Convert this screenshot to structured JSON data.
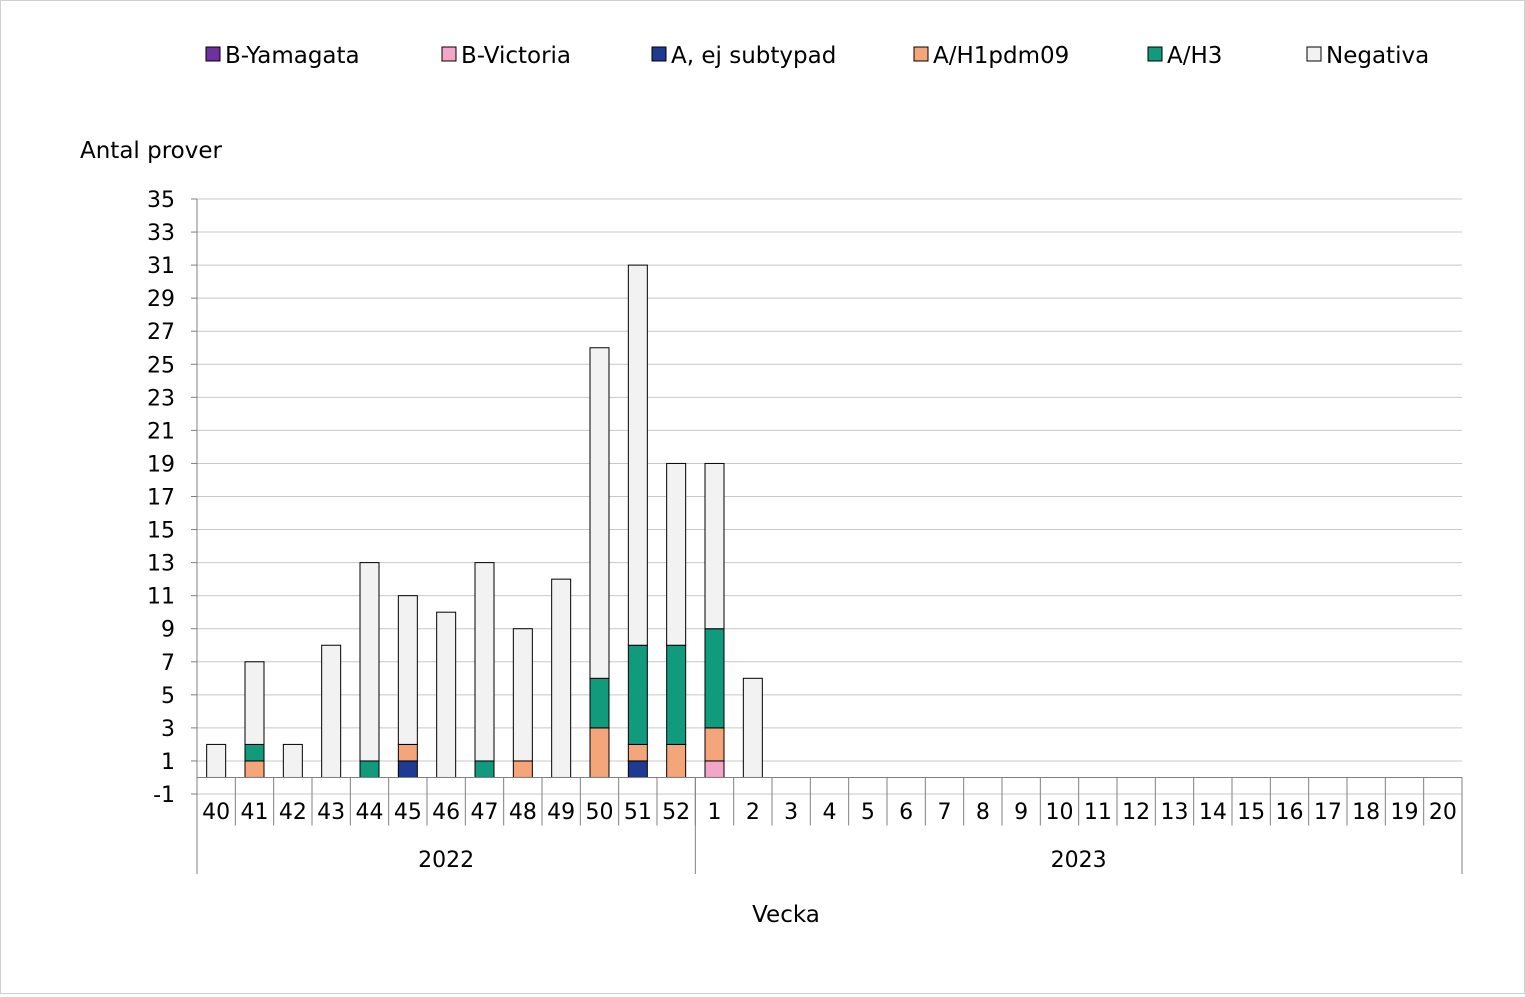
{
  "chart_data": {
    "type": "bar",
    "stacked": true,
    "ylabel": "Antal prover",
    "xlabel": "Vecka",
    "ylim": [
      -1,
      35
    ],
    "yticks": [
      -1,
      1,
      3,
      5,
      7,
      9,
      11,
      13,
      15,
      17,
      19,
      21,
      23,
      25,
      27,
      29,
      31,
      33,
      35
    ],
    "grid": true,
    "legend_position": "top",
    "categories": [
      "40",
      "41",
      "42",
      "43",
      "44",
      "45",
      "46",
      "47",
      "48",
      "49",
      "50",
      "51",
      "52",
      "1",
      "2",
      "3",
      "4",
      "5",
      "6",
      "7",
      "8",
      "9",
      "10",
      "11",
      "12",
      "13",
      "14",
      "15",
      "16",
      "17",
      "18",
      "19",
      "20"
    ],
    "year_groups": [
      {
        "label": "2022",
        "count": 13
      },
      {
        "label": "2023",
        "count": 20
      }
    ],
    "series": [
      {
        "name": "B-Yamagata",
        "color": "#7030a0",
        "values": [
          0,
          0,
          0,
          0,
          0,
          0,
          0,
          0,
          0,
          0,
          0,
          0,
          0,
          0,
          0,
          0,
          0,
          0,
          0,
          0,
          0,
          0,
          0,
          0,
          0,
          0,
          0,
          0,
          0,
          0,
          0,
          0,
          0
        ]
      },
      {
        "name": "B-Victoria",
        "color": "#f4a6c8",
        "values": [
          0,
          0,
          0,
          0,
          0,
          0,
          0,
          0,
          0,
          0,
          0,
          0,
          0,
          1,
          0,
          0,
          0,
          0,
          0,
          0,
          0,
          0,
          0,
          0,
          0,
          0,
          0,
          0,
          0,
          0,
          0,
          0,
          0
        ]
      },
      {
        "name": "A, ej subtypad",
        "color": "#1f3a93",
        "values": [
          0,
          0,
          0,
          0,
          0,
          1,
          0,
          0,
          0,
          0,
          0,
          1,
          0,
          0,
          0,
          0,
          0,
          0,
          0,
          0,
          0,
          0,
          0,
          0,
          0,
          0,
          0,
          0,
          0,
          0,
          0,
          0,
          0
        ]
      },
      {
        "name": "A/H1pdm09",
        "color": "#f4a57a",
        "values": [
          0,
          1,
          0,
          0,
          0,
          1,
          0,
          0,
          1,
          0,
          3,
          1,
          2,
          2,
          0,
          0,
          0,
          0,
          0,
          0,
          0,
          0,
          0,
          0,
          0,
          0,
          0,
          0,
          0,
          0,
          0,
          0,
          0
        ]
      },
      {
        "name": "A/H3",
        "color": "#0f9b7c",
        "values": [
          0,
          1,
          0,
          0,
          1,
          0,
          0,
          1,
          0,
          0,
          3,
          6,
          6,
          6,
          0,
          0,
          0,
          0,
          0,
          0,
          0,
          0,
          0,
          0,
          0,
          0,
          0,
          0,
          0,
          0,
          0,
          0,
          0
        ]
      },
      {
        "name": "Negativa",
        "color": "#f2f2f2",
        "values": [
          2,
          5,
          2,
          8,
          12,
          9,
          10,
          12,
          8,
          12,
          20,
          23,
          11,
          10,
          6,
          0,
          0,
          0,
          0,
          0,
          0,
          0,
          0,
          0,
          0,
          0,
          0,
          0,
          0,
          0,
          0,
          0,
          0
        ]
      }
    ]
  }
}
